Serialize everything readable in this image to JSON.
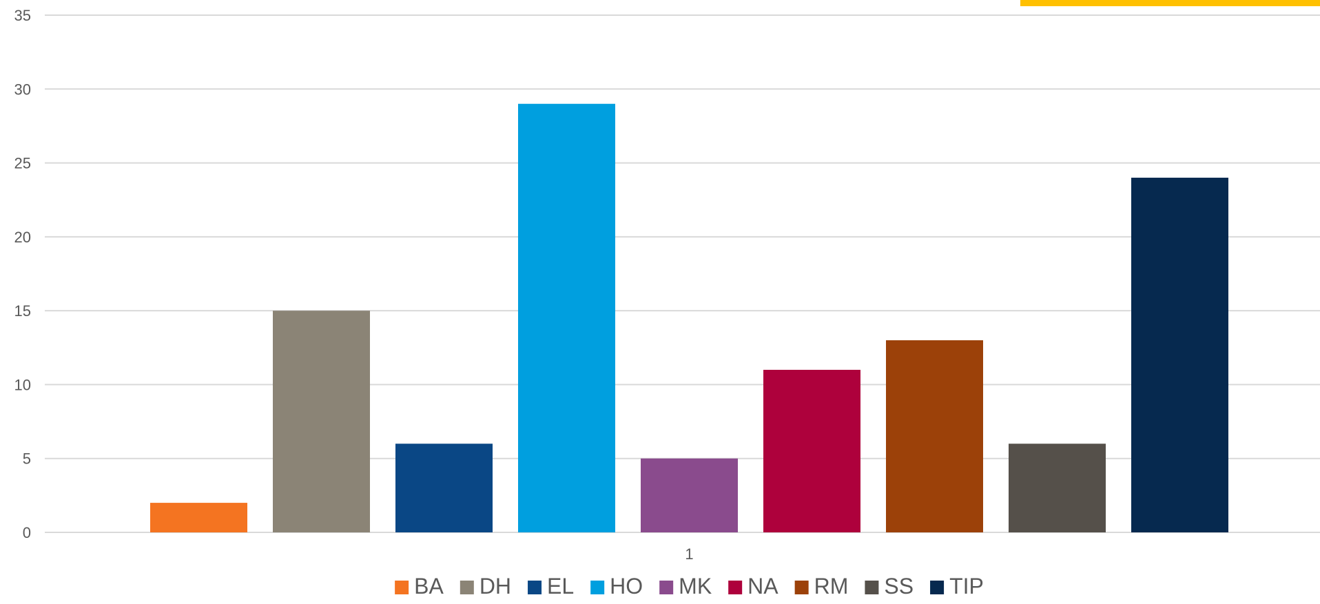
{
  "chart_data": {
    "type": "bar",
    "categories": [
      "1"
    ],
    "series": [
      {
        "name": "BA",
        "values": [
          2
        ],
        "color": "#F47421"
      },
      {
        "name": "DH",
        "values": [
          15
        ],
        "color": "#8B8476"
      },
      {
        "name": "EL",
        "values": [
          6
        ],
        "color": "#0A4785"
      },
      {
        "name": "HO",
        "values": [
          29
        ],
        "color": "#009FDF"
      },
      {
        "name": "MK",
        "values": [
          5
        ],
        "color": "#8A4B8D"
      },
      {
        "name": "NA",
        "values": [
          11
        ],
        "color": "#AE013C"
      },
      {
        "name": "RM",
        "values": [
          13
        ],
        "color": "#9C4109"
      },
      {
        "name": "SS",
        "values": [
          6
        ],
        "color": "#55504A"
      },
      {
        "name": "TIP",
        "values": [
          24
        ],
        "color": "#06294F"
      }
    ],
    "title": "",
    "xlabel": "",
    "ylabel": "",
    "ylim": [
      0,
      35
    ],
    "yticks": [
      "0",
      "5",
      "10",
      "15",
      "20",
      "25",
      "30",
      "35"
    ],
    "grid": true,
    "legend": "bottom",
    "accent_bar_color": "#FFC000",
    "gridline_color": "#D9D9D9"
  }
}
